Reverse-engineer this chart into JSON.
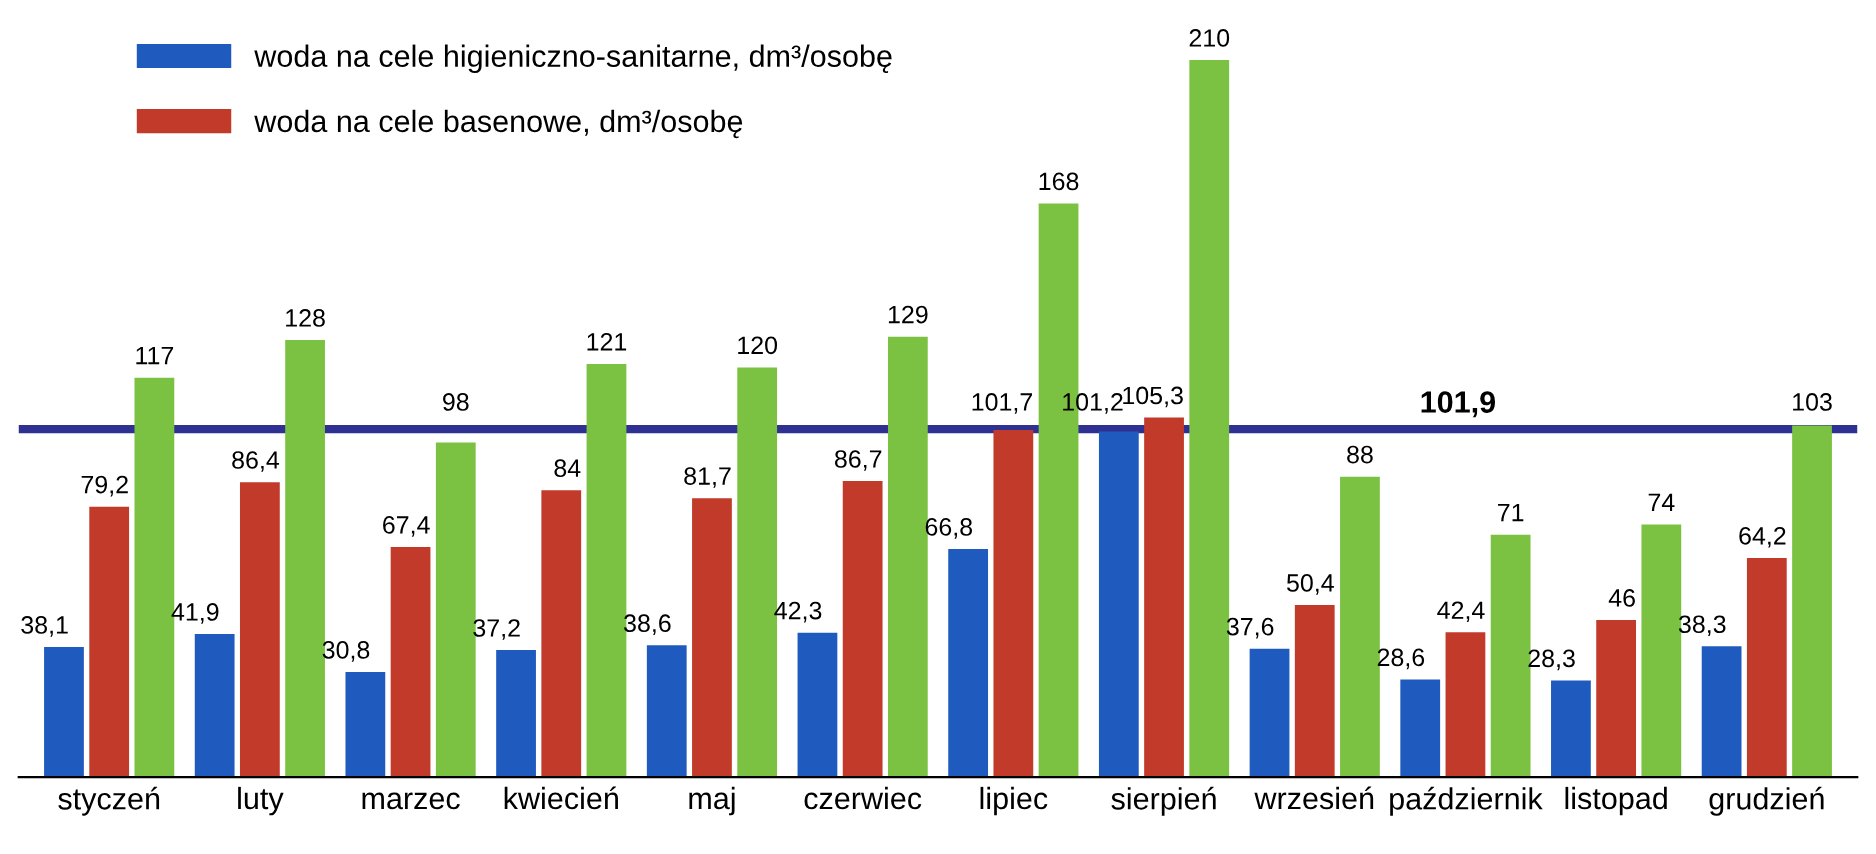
{
  "chart_data": {
    "type": "bar",
    "categories": [
      "styczeń",
      "luty",
      "marzec",
      "kwiecień",
      "maj",
      "czerwiec",
      "lipiec",
      "sierpień",
      "wrzesień",
      "październik",
      "listopad",
      "grudzień"
    ],
    "series": [
      {
        "name": "woda na cele higieniczno-sanitarne, dm³/osobę",
        "color": "#1f5bbf",
        "values": [
          38.1,
          41.9,
          30.8,
          37.2,
          38.6,
          42.3,
          66.8,
          101.2,
          37.6,
          28.6,
          28.3,
          38.3
        ],
        "value_labels": [
          "38,1",
          "41,9",
          "30,8",
          "37,2",
          "38,6",
          "42,3",
          "66,8",
          "101,2",
          "37,6",
          "28,6",
          "28,3",
          "38,3"
        ]
      },
      {
        "name": "woda na cele basenowe, dm³/osobę",
        "color": "#c23b2a",
        "values": [
          79.2,
          86.4,
          67.4,
          84,
          81.7,
          86.7,
          101.7,
          105.3,
          50.4,
          42.4,
          46,
          64.2
        ],
        "value_labels": [
          "79,2",
          "86,4",
          "67,4",
          "84",
          "81,7",
          "86,7",
          "101,7",
          "105,3",
          "50,4",
          "42,4",
          "46",
          "64,2"
        ]
      },
      {
        "color": "#7cc242",
        "values": [
          117,
          128,
          98,
          121,
          120,
          129,
          168,
          210,
          88,
          71,
          74,
          103
        ],
        "value_labels": [
          "117",
          "128",
          "98",
          "121",
          "120",
          "129",
          "168",
          "210",
          "88",
          "71",
          "74",
          "103"
        ]
      }
    ],
    "ref_lines": [
      {
        "axis": "y",
        "value": 101.9,
        "label": "101,9",
        "color": "#2e3192"
      }
    ],
    "legend": "top left",
    "grid": false
  }
}
